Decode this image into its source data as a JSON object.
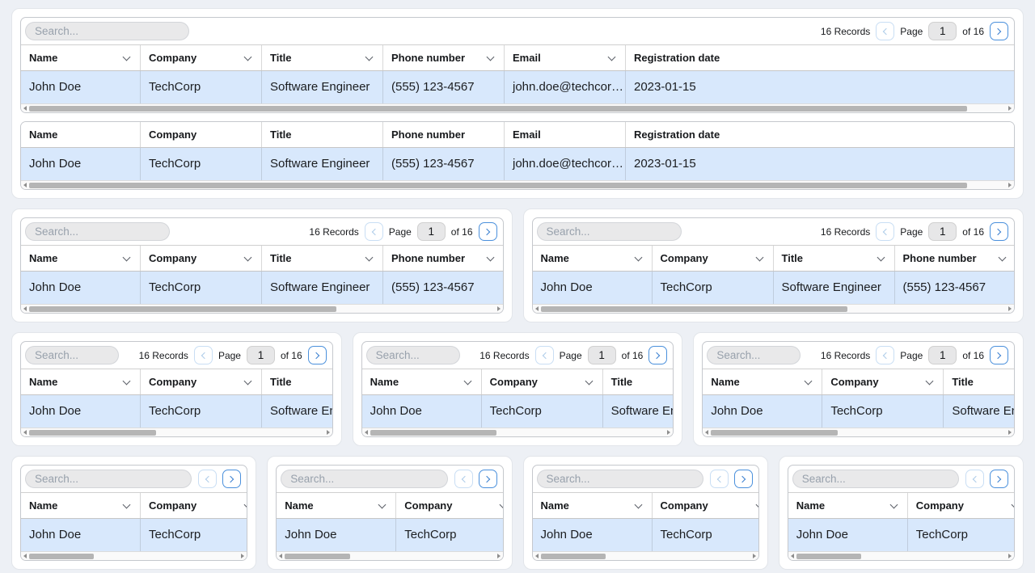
{
  "toolbar": {
    "search_placeholder": "Search...",
    "records": "16 Records",
    "page_label": "Page",
    "page_value": "1",
    "of_label": "of 16"
  },
  "table": {
    "columns": [
      "Name",
      "Company",
      "Title",
      "Phone number",
      "Email",
      "Registration date"
    ],
    "row": [
      "John Doe",
      "TechCorp",
      "Software Engineer",
      "(555) 123-4567",
      "john.doe@techcor…",
      "2023-01-15"
    ]
  },
  "colors": {
    "selected_row": "#d8e8fc",
    "accent": "#4a90dc",
    "page_background": "#edf0f5"
  }
}
